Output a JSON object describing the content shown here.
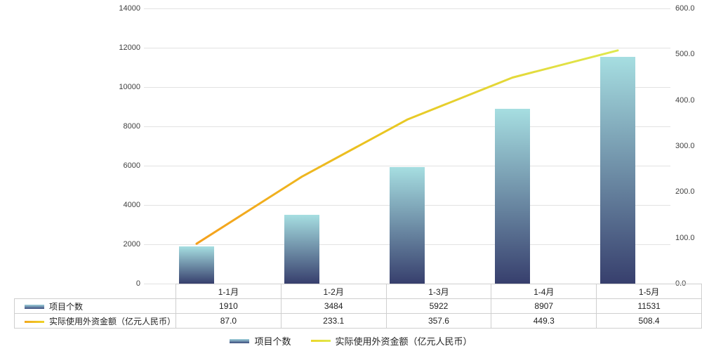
{
  "chart_data": {
    "type": "bar+line",
    "categories": [
      "1-1月",
      "1-2月",
      "1-3月",
      "1-4月",
      "1-5月"
    ],
    "series": [
      {
        "name": "项目个数",
        "type": "bar",
        "axis": "left",
        "values": [
          1910,
          3484,
          5922,
          8907,
          11531
        ]
      },
      {
        "name": "实际使用外资金额（亿元人民币）",
        "type": "line",
        "axis": "right",
        "values": [
          87.0,
          233.1,
          357.6,
          449.3,
          508.4
        ]
      }
    ],
    "left_axis": {
      "min": 0,
      "max": 14000,
      "step": 2000,
      "ticks": [
        "14000",
        "12000",
        "10000",
        "8000",
        "6000",
        "4000",
        "2000",
        "0"
      ]
    },
    "right_axis": {
      "min": 0,
      "max": 600,
      "step": 100,
      "ticks": [
        "600.0",
        "500.0",
        "400.0",
        "300.0",
        "200.0",
        "100.0",
        "0.0"
      ]
    },
    "grid": true,
    "legend_position": "bottom",
    "title": ""
  },
  "table": {
    "row_labels": [
      "项目个数",
      "实际使用外资金额（亿元人民币）"
    ],
    "rows": [
      [
        "1910",
        "3484",
        "5922",
        "8907",
        "11531"
      ],
      [
        "87.0",
        "233.1",
        "357.6",
        "449.3",
        "508.4"
      ]
    ]
  },
  "legend": {
    "items": [
      {
        "label": "项目个数",
        "marker": "bar"
      },
      {
        "label": "实际使用外资金额（亿元人民币）",
        "marker": "line"
      }
    ]
  },
  "colors": {
    "bar_top": "#a6dee1",
    "bar_bottom": "#373f6d",
    "line_start": "#f5a11d",
    "line_mid": "#e9c621",
    "line_end": "#dfe84e",
    "grid": "#e2e2e2",
    "table_border": "#cfcfcf",
    "text": "#333333"
  }
}
